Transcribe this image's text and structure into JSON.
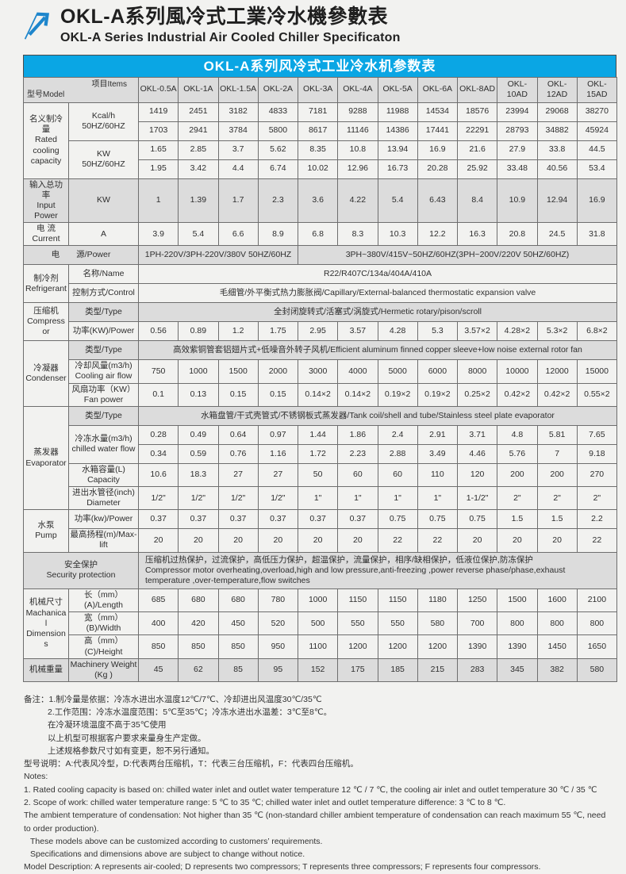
{
  "theme": {
    "accent": "#0aa6e4",
    "shade": "#dcdcdc",
    "logo_blue": "#1e86cc",
    "title_text": "#ffffff"
  },
  "header": {
    "title_zh": "OKL-A系列風冷式工業冷水機參數表",
    "title_en": "OKL-A Series Industrial Air Cooled Chiller Specificaton",
    "logo_icon": "arrow-up-right-icon"
  },
  "table": {
    "title": "OKL-A系列风冷式工业冷水机参数表",
    "corner": {
      "model": "型号Model",
      "items": "项目Items"
    },
    "models": [
      "OKL-0.5A",
      "OKL-1A",
      "OKL-1.5A",
      "OKL-2A",
      "OKL-3A",
      "OKL-4A",
      "OKL-5A",
      "OKL-6A",
      "OKL-8AD",
      "OKL-10AD",
      "OKL-12AD",
      "OKL-15AD"
    ],
    "rows": [
      {
        "cat": {
          "rs": 4,
          "lines": [
            "名义制冷量",
            "Rated",
            "cooling",
            "capacity"
          ]
        },
        "item": {
          "rs": 2,
          "lines": [
            "Kcal/h",
            "50HZ/60HZ"
          ]
        },
        "values": [
          "1419",
          "2451",
          "3182",
          "4833",
          "7181",
          "9288",
          "11988",
          "14534",
          "18576",
          "23994",
          "29068",
          "38270"
        ]
      },
      {
        "values": [
          "1703",
          "2941",
          "3784",
          "5800",
          "8617",
          "11146",
          "14386",
          "17441",
          "22291",
          "28793",
          "34882",
          "45924"
        ]
      },
      {
        "item": {
          "rs": 2,
          "lines": [
            "KW",
            "50HZ/60HZ"
          ]
        },
        "values": [
          "1.65",
          "2.85",
          "3.7",
          "5.62",
          "8.35",
          "10.8",
          "13.94",
          "16.9",
          "21.6",
          "27.9",
          "33.8",
          "44.5"
        ]
      },
      {
        "values": [
          "1.95",
          "3.42",
          "4.4",
          "6.74",
          "10.02",
          "12.96",
          "16.73",
          "20.28",
          "25.92",
          "33.48",
          "40.56",
          "53.4"
        ]
      },
      {
        "cat": {
          "rs": 1,
          "lines": [
            "输入总功率",
            "Input Power"
          ]
        },
        "item": {
          "rs": 1,
          "lines": [
            "KW"
          ]
        },
        "shade": true,
        "values": [
          "1",
          "1.39",
          "1.7",
          "2.3",
          "3.6",
          "4.22",
          "5.4",
          "6.43",
          "8.4",
          "10.9",
          "12.94",
          "16.9"
        ]
      },
      {
        "cat": {
          "rs": 1,
          "lines": [
            "电 流",
            "Current"
          ]
        },
        "item": {
          "rs": 1,
          "lines": [
            "A"
          ]
        },
        "values": [
          "3.9",
          "5.4",
          "6.6",
          "8.9",
          "6.8",
          "8.3",
          "10.3",
          "12.2",
          "16.3",
          "20.8",
          "24.5",
          "31.8"
        ]
      },
      {
        "label2": {
          "lines": [
            "电　　源/Power"
          ]
        },
        "shade": true,
        "spans": [
          {
            "cs": 4,
            "text": "1PH-220V/3PH-220V/380V 50HZ/60HZ"
          },
          {
            "cs": 8,
            "text": "3PH~380V/415V~50HZ/60HZ(3PH~200V/220V  50HZ/60HZ)"
          }
        ]
      },
      {
        "cat": {
          "rs": 2,
          "lines": [
            "制冷剂",
            "Refrigerant"
          ]
        },
        "item": {
          "rs": 1,
          "lines": [
            "名称/Name"
          ]
        },
        "spans": [
          {
            "cs": 12,
            "text": "R22/R407C/134a/404A/410A"
          }
        ]
      },
      {
        "item": {
          "rs": 1,
          "lines": [
            "控制方式/Control"
          ]
        },
        "spans": [
          {
            "cs": 12,
            "text": "毛细管/外平衡式热力膨胀阀/Capillary/External-balanced thermostatic expansion valve"
          }
        ]
      },
      {
        "cat": {
          "rs": 2,
          "lines": [
            "压缩机",
            "Compressor"
          ]
        },
        "item": {
          "rs": 1,
          "lines": [
            "类型/Type"
          ]
        },
        "shadeSpan": true,
        "spans": [
          {
            "cs": 12,
            "text": "全封闭旋转式/活塞式/涡旋式/Hermetic rotary/pison/scroll"
          }
        ]
      },
      {
        "item": {
          "rs": 1,
          "lines": [
            "功率(KW)/Power"
          ]
        },
        "values": [
          "0.56",
          "0.89",
          "1.2",
          "1.75",
          "2.95",
          "3.57",
          "4.28",
          "5.3",
          "3.57×2",
          "4.28×2",
          "5.3×2",
          "6.8×2"
        ]
      },
      {
        "cat": {
          "rs": 3,
          "lines": [
            "冷凝器",
            "Condenser"
          ]
        },
        "item": {
          "rs": 1,
          "lines": [
            "类型/Type"
          ]
        },
        "shadeSpan": true,
        "spans": [
          {
            "cs": 12,
            "text": "高效紫铜管套铝翅片式+低噪音外转子风机/Efficient aluminum finned copper sleeve+low noise external rotor fan"
          }
        ]
      },
      {
        "item": {
          "rs": 1,
          "lines": [
            "冷却风量(m3/h)",
            "Cooling air flow"
          ]
        },
        "values": [
          "750",
          "1000",
          "1500",
          "2000",
          "3000",
          "4000",
          "5000",
          "6000",
          "8000",
          "10000",
          "12000",
          "15000"
        ]
      },
      {
        "item": {
          "rs": 1,
          "lines": [
            "风扇功率（KW）",
            "Fan power"
          ]
        },
        "values": [
          "0.1",
          "0.13",
          "0.15",
          "0.15",
          "0.14×2",
          "0.14×2",
          "0.19×2",
          "0.19×2",
          "0.25×2",
          "0.42×2",
          "0.42×2",
          "0.55×2"
        ]
      },
      {
        "cat": {
          "rs": 5,
          "lines": [
            "蒸发器",
            "Evaporator"
          ]
        },
        "item": {
          "rs": 1,
          "lines": [
            "类型/Type"
          ]
        },
        "shadeSpan": true,
        "spans": [
          {
            "cs": 12,
            "text": "水箱盘管/干式壳管式/不锈钢板式蒸发器/Tank coil/shell and tube/Stainless steel plate evaporator"
          }
        ]
      },
      {
        "item": {
          "rs": 2,
          "lines": [
            "冷冻水量(m3/h)",
            "chilled water flow"
          ]
        },
        "values": [
          "0.28",
          "0.49",
          "0.64",
          "0.97",
          "1.44",
          "1.86",
          "2.4",
          "2.91",
          "3.71",
          "4.8",
          "5.81",
          "7.65"
        ]
      },
      {
        "values": [
          "0.34",
          "0.59",
          "0.76",
          "1.16",
          "1.72",
          "2.23",
          "2.88",
          "3.49",
          "4.46",
          "5.76",
          "7",
          "9.18"
        ]
      },
      {
        "item": {
          "rs": 1,
          "lines": [
            "水箱容量(L)",
            "Capacity"
          ]
        },
        "values": [
          "10.6",
          "18.3",
          "27",
          "27",
          "50",
          "60",
          "60",
          "110",
          "120",
          "200",
          "200",
          "270"
        ]
      },
      {
        "item": {
          "rs": 1,
          "lines": [
            "进出水管径(inch)",
            "Diameter"
          ]
        },
        "values": [
          "1/2\"",
          "1/2\"",
          "1/2\"",
          "1/2\"",
          "1\"",
          "1\"",
          "1\"",
          "1\"",
          "1-1/2\"",
          "2\"",
          "2\"",
          "2\""
        ]
      },
      {
        "cat": {
          "rs": 2,
          "lines": [
            "水泵",
            "Pump"
          ]
        },
        "item": {
          "rs": 1,
          "lines": [
            "功率(kw)/Power"
          ]
        },
        "values": [
          "0.37",
          "0.37",
          "0.37",
          "0.37",
          "0.37",
          "0.37",
          "0.75",
          "0.75",
          "0.75",
          "1.5",
          "1.5",
          "2.2"
        ]
      },
      {
        "item": {
          "rs": 1,
          "lines": [
            "最高扬程(m)/Max-lift"
          ]
        },
        "values": [
          "20",
          "20",
          "20",
          "20",
          "20",
          "20",
          "22",
          "22",
          "20",
          "20",
          "20",
          "22"
        ]
      },
      {
        "label2": {
          "lines": [
            "安全保护",
            "Security protection"
          ]
        },
        "shade": true,
        "spans": [
          {
            "cs": 12,
            "left": true,
            "lines": [
              "压缩机过热保护，过流保护，高低压力保护，超温保护，流量保护，相序/缺相保护，低液位保护,防冻保护",
              "Compressor motor overheating,overload,high and low pressure,anti-freezing ,power reverse phase/phase,exhaust temperature ,over-temperature,flow switches"
            ]
          }
        ]
      },
      {
        "cat": {
          "rs": 3,
          "lines": [
            "机械尺寸",
            "Machanical",
            "Dimensions"
          ]
        },
        "item": {
          "rs": 1,
          "lines": [
            "长（mm）(A)/Length"
          ]
        },
        "values": [
          "685",
          "680",
          "680",
          "780",
          "1000",
          "1150",
          "1150",
          "1180",
          "1250",
          "1500",
          "1600",
          "2100"
        ]
      },
      {
        "item": {
          "rs": 1,
          "lines": [
            "宽（mm）(B)/Width"
          ]
        },
        "values": [
          "400",
          "420",
          "450",
          "520",
          "500",
          "550",
          "550",
          "580",
          "700",
          "800",
          "800",
          "800"
        ]
      },
      {
        "item": {
          "rs": 1,
          "lines": [
            "高（mm）(C)/Height"
          ]
        },
        "values": [
          "850",
          "850",
          "850",
          "950",
          "1100",
          "1200",
          "1200",
          "1200",
          "1390",
          "1390",
          "1450",
          "1650"
        ]
      },
      {
        "cat": {
          "rs": 1,
          "lines": [
            "机械重量"
          ]
        },
        "item": {
          "rs": 1,
          "lines": [
            "Machinery Weight",
            "(Kg )"
          ]
        },
        "shade": true,
        "values": [
          "45",
          "62",
          "85",
          "95",
          "152",
          "175",
          "185",
          "215",
          "283",
          "345",
          "382",
          "580"
        ]
      }
    ]
  },
  "notes": {
    "zh": [
      "备注：1.制冷量是依据：冷冻水进出水温度12℃/7℃、冷却进出风温度30℃/35℃",
      "2.工作范围：冷冻水温度范围：5℃至35℃；冷冻水进出水温差：3℃至8℃。",
      "在冷凝环境温度不高于35℃使用",
      "以上机型可根据客户要求来量身生产定做。",
      "上述规格参数尺寸如有变更，恕不另行通知。",
      "型号说明：A:代表风冷型，D:代表两台压缩机，T：代表三台压缩机，F：代表四台压缩机。"
    ],
    "zh_indent": [
      1,
      2,
      3,
      4
    ],
    "en": [
      "Notes:",
      "1. Rated cooling capacity is based on: chilled water inlet and outlet water temperature 12 ℃ / 7 ℃, the cooling air inlet and outlet temperature 30 ℃ / 35 ℃",
      "2. Scope of work: chilled water temperature range: 5 ℃ to 35 ℃; chilled water inlet and outlet temperature difference: 3 ℃ to 8 ℃.",
      "The ambient temperature of condensation: Not higher than 35 ℃ (non-standard chiller ambient temperature of condensation can reach maximum 55 ℃, need to order production).",
      "These models above can be customized according to customers’ requirements.",
      "Specifications and dimensions above are subject to change without notice.",
      "Model Description: A represents air-cooled; D represents two compressors; T represents three compressors; F represents four compressors."
    ],
    "en_indent": [
      4,
      5
    ]
  }
}
